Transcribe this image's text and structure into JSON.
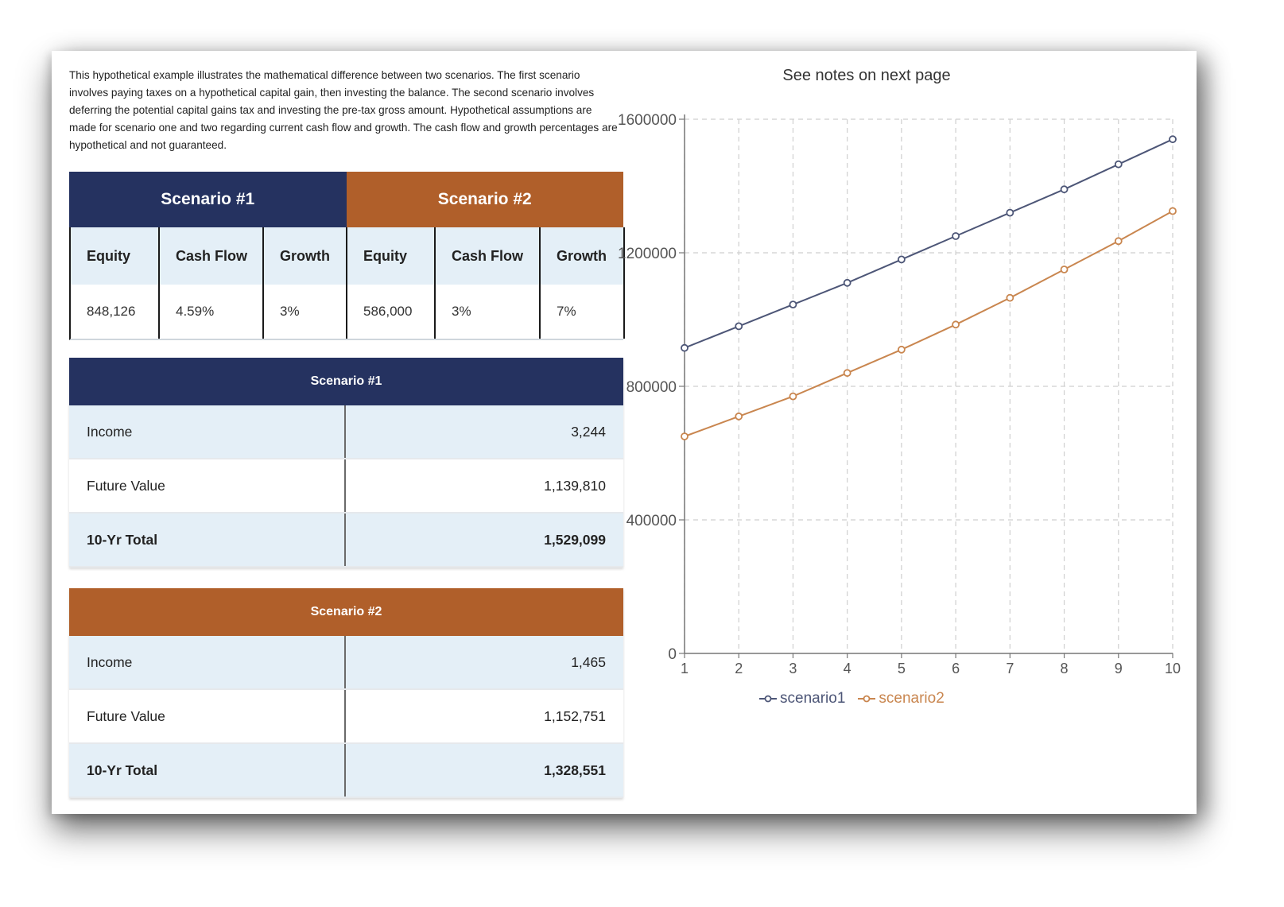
{
  "intro_text": "This hypothetical example illustrates the mathematical difference between two scenarios. The first scenario involves paying taxes on a hypothetical capital gain, then investing the balance. The second scenario involves deferring the potential capital gains tax and investing the pre-tax gross amount. Hypothetical assumptions are made for scenario one and two regarding current cash flow and growth. The cash flow and growth percentages are hypothetical and not guaranteed.",
  "colors": {
    "navy": "#253260",
    "orange": "#b05f2a",
    "scenario1_line": "#4d5677",
    "scenario2_line": "#c9864f"
  },
  "top_table": {
    "scenario1": {
      "title": "Scenario #1",
      "headers": [
        "Equity",
        "Cash Flow",
        "Growth"
      ],
      "values": [
        "848,126",
        "4.59%",
        "3%"
      ]
    },
    "scenario2": {
      "title": "Scenario #2",
      "headers": [
        "Equity",
        "Cash Flow",
        "Growth"
      ],
      "values": [
        "586,000",
        "3%",
        "7%"
      ]
    }
  },
  "summary1": {
    "title": "Scenario #1",
    "rows": [
      {
        "label": "Income",
        "value": "3,244"
      },
      {
        "label": "Future Value",
        "value": "1,139,810"
      },
      {
        "label": "10-Yr Total",
        "value": "1,529,099"
      }
    ]
  },
  "summary2": {
    "title": "Scenario #2",
    "rows": [
      {
        "label": "Income",
        "value": "1,465"
      },
      {
        "label": "Future Value",
        "value": "1,152,751"
      },
      {
        "label": "10-Yr Total",
        "value": "1,328,551"
      }
    ]
  },
  "chart_data": {
    "type": "line",
    "title": "See notes on next page",
    "x": [
      1,
      2,
      3,
      4,
      5,
      6,
      7,
      8,
      9,
      10
    ],
    "series": [
      {
        "name": "scenario1",
        "values": [
          915000,
          980000,
          1045000,
          1110000,
          1180000,
          1250000,
          1320000,
          1390000,
          1465000,
          1540000
        ]
      },
      {
        "name": "scenario2",
        "values": [
          650000,
          710000,
          770000,
          840000,
          910000,
          985000,
          1065000,
          1150000,
          1235000,
          1325000
        ]
      }
    ],
    "y_ticks": [
      "0",
      "400000",
      "800000",
      "1200000",
      "1600000"
    ],
    "ylim": [
      0,
      1600000
    ],
    "xlim": [
      1,
      10
    ],
    "grid": true,
    "legend": "bottom"
  }
}
